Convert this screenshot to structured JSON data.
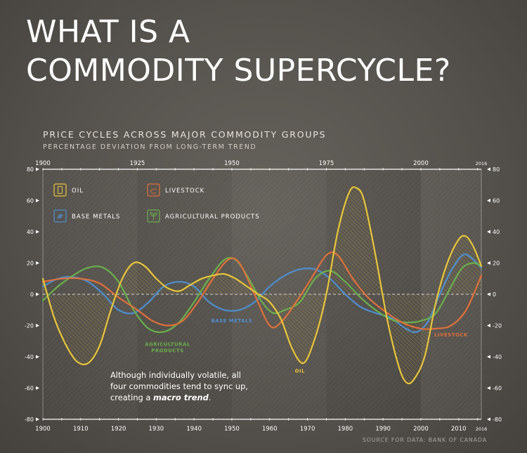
{
  "headline": [
    "WHAT IS A",
    "COMMODITY SUPERCYCLE?"
  ],
  "source": "SOURCE FOR DATA: BANK OF CANADA",
  "note": {
    "line1": "Although individually volatile, all",
    "line2": "four commodities tend to sync up,",
    "line3_prefix": "creating a ",
    "line3_emphasis": "macro trend",
    "line3_suffix": "."
  },
  "colors": {
    "oil": "#e8c53a",
    "livestock": "#e0703a",
    "base_metals": "#4e8fd0",
    "agricultural_products": "#6ab04c",
    "axis": "#ffffff",
    "background": "#58544f"
  },
  "chart_data": {
    "type": "line",
    "title": "PRICE CYCLES ACROSS MAJOR COMMODITY GROUPS",
    "subtitle": "PERCENTAGE DEVIATION FROM LONG-TERM TREND",
    "top_ticks": [
      "1900",
      "1925",
      "1950",
      "1975",
      "2000",
      "2016"
    ],
    "bottom_ticks": [
      "1900",
      "1910",
      "1920",
      "1930",
      "1940",
      "1950",
      "1960",
      "1970",
      "1980",
      "1990",
      "2000",
      "2010",
      "2016"
    ],
    "yticks": [
      "80",
      "60",
      "40",
      "20",
      "0",
      "-20",
      "-40",
      "-60",
      "-80"
    ],
    "xlim": [
      1900,
      2016
    ],
    "ylim": [
      -80,
      80
    ],
    "legend": [
      {
        "key": "oil",
        "label": "OIL",
        "icon": "oil-barrel-icon"
      },
      {
        "key": "livestock",
        "label": "LIVESTOCK",
        "icon": "livestock-icon"
      },
      {
        "key": "base_metals",
        "label": "BASE METALS",
        "icon": "metal-ingot-icon"
      },
      {
        "key": "agricultural_products",
        "label": "AGRICULTURAL PRODUCTS",
        "icon": "plant-icon"
      }
    ],
    "annotations": [
      {
        "key": "agricultural_products",
        "text": [
          "AGRICULTURAL",
          "PRODUCTS"
        ],
        "x": 1933,
        "y": -33
      },
      {
        "key": "base_metals",
        "text": [
          "BASE METALS"
        ],
        "x": 1950,
        "y": -18
      },
      {
        "key": "oil",
        "text": [
          "OIL"
        ],
        "x": 1968,
        "y": -50
      },
      {
        "key": "livestock",
        "text": [
          "LIVESTOCK"
        ],
        "x": 2008,
        "y": -27
      }
    ],
    "series": [
      {
        "key": "oil",
        "name": "OIL",
        "x": [
          1900,
          1903,
          1906,
          1909,
          1912,
          1915,
          1918,
          1921,
          1924,
          1927,
          1930,
          1933,
          1936,
          1939,
          1942,
          1945,
          1948,
          1951,
          1954,
          1957,
          1960,
          1963,
          1966,
          1969,
          1972,
          1975,
          1978,
          1981,
          1983,
          1985,
          1988,
          1991,
          1994,
          1996,
          1998,
          2001,
          2004,
          2007,
          2010,
          2012,
          2014,
          2016
        ],
        "y": [
          10,
          -15,
          -32,
          -43,
          -44,
          -33,
          -10,
          10,
          20,
          18,
          10,
          4,
          2,
          6,
          10,
          12,
          13,
          10,
          5,
          0,
          -5,
          -16,
          -35,
          -44,
          -28,
          0,
          40,
          65,
          68,
          60,
          25,
          -15,
          -45,
          -56,
          -55,
          -40,
          -5,
          20,
          35,
          37,
          30,
          18
        ]
      },
      {
        "key": "livestock",
        "name": "LIVESTOCK",
        "x": [
          1900,
          1905,
          1910,
          1915,
          1920,
          1925,
          1929,
          1933,
          1937,
          1941,
          1945,
          1949,
          1952,
          1956,
          1960,
          1963,
          1967,
          1971,
          1975,
          1978,
          1982,
          1986,
          1990,
          1995,
          2000,
          2004,
          2008,
          2012,
          2016
        ],
        "y": [
          8,
          10,
          10,
          7,
          -2,
          -10,
          -17,
          -20,
          -17,
          -5,
          10,
          22,
          20,
          0,
          -20,
          -18,
          -5,
          10,
          25,
          25,
          10,
          -2,
          -10,
          -18,
          -22,
          -22,
          -20,
          -10,
          12
        ]
      },
      {
        "key": "base_metals",
        "name": "BASE METALS",
        "x": [
          1900,
          1904,
          1908,
          1912,
          1916,
          1920,
          1924,
          1928,
          1932,
          1936,
          1940,
          1944,
          1948,
          1952,
          1956,
          1960,
          1964,
          1968,
          1972,
          1976,
          1980,
          1984,
          1988,
          1992,
          1996,
          1999,
          2002,
          2005,
          2008,
          2011,
          2013,
          2016
        ],
        "y": [
          5,
          10,
          11,
          8,
          0,
          -10,
          -12,
          -5,
          5,
          8,
          5,
          -5,
          -10,
          -10,
          -5,
          5,
          12,
          16,
          16,
          10,
          0,
          -8,
          -12,
          -15,
          -22,
          -24,
          -17,
          0,
          15,
          25,
          24,
          17
        ]
      },
      {
        "key": "agricultural_products",
        "name": "AGRICULTURAL PRODUCTS",
        "x": [
          1900,
          1904,
          1908,
          1912,
          1916,
          1920,
          1924,
          1928,
          1932,
          1936,
          1940,
          1944,
          1948,
          1951,
          1954,
          1958,
          1961,
          1964,
          1968,
          1972,
          1976,
          1980,
          1984,
          1988,
          1992,
          1996,
          2000,
          2004,
          2008,
          2011,
          2014,
          2016
        ],
        "y": [
          -4,
          5,
          12,
          17,
          17,
          8,
          -10,
          -22,
          -24,
          -18,
          -5,
          10,
          22,
          22,
          12,
          -5,
          -12,
          -10,
          -5,
          10,
          15,
          8,
          -2,
          -10,
          -16,
          -18,
          -17,
          -12,
          5,
          17,
          20,
          18
        ]
      }
    ]
  }
}
